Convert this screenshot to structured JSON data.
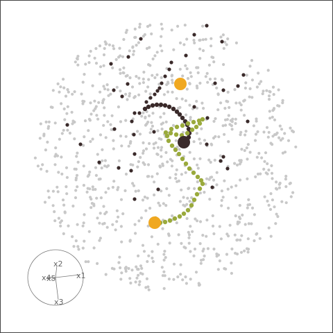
{
  "colors": {
    "background": "#ffffff",
    "border": "#444444",
    "background_points": "#c8c8c8",
    "dark_points": "#3a2a2a",
    "path_olive": "#9aaa3c",
    "highlight_orange": "#f0a820",
    "axis_gray": "#777777"
  },
  "axes_widget": {
    "labels": [
      "x1",
      "x2",
      "x3",
      "x4",
      "x5"
    ]
  },
  "chart_data": {
    "type": "scatter",
    "title": "",
    "xlabel": "",
    "ylabel": "",
    "grid": false,
    "legend": "none",
    "dark_points": [
      [
        298,
        37
      ],
      [
        280,
        50
      ],
      [
        203,
        56
      ],
      [
        320,
        60
      ],
      [
        185,
        82
      ],
      [
        268,
        80
      ],
      [
        160,
        92
      ],
      [
        351,
        108
      ],
      [
        310,
        120
      ],
      [
        184,
        121
      ],
      [
        343,
        124
      ],
      [
        164,
        130
      ],
      [
        322,
        130
      ],
      [
        176,
        139
      ],
      [
        280,
        154
      ],
      [
        194,
        163
      ],
      [
        299,
        170
      ],
      [
        357,
        175
      ],
      [
        190,
        175
      ],
      [
        97,
        180
      ],
      [
        165,
        186
      ],
      [
        222,
        190
      ],
      [
        193,
        194
      ],
      [
        116,
        208
      ],
      [
        298,
        208
      ],
      [
        194,
        222
      ],
      [
        322,
        226
      ],
      [
        318,
        232
      ],
      [
        143,
        234
      ],
      [
        189,
        246
      ],
      [
        171,
        242
      ],
      [
        328,
        243
      ],
      [
        228,
        273
      ],
      [
        194,
        287
      ],
      [
        306,
        270
      ],
      [
        247,
        90
      ],
      [
        244,
        100
      ],
      [
        238,
        110
      ],
      [
        233,
        120
      ],
      [
        230,
        127
      ],
      [
        227,
        131
      ],
      [
        223,
        136
      ],
      [
        217,
        141
      ],
      [
        211,
        147
      ],
      [
        201,
        163
      ]
    ],
    "dark_curve": [
      [
        209,
        157
      ],
      [
        214,
        154
      ],
      [
        220,
        152
      ],
      [
        226,
        151
      ],
      [
        232,
        151
      ],
      [
        238,
        152
      ],
      [
        244,
        154
      ],
      [
        250,
        157
      ],
      [
        255,
        161
      ],
      [
        259,
        165
      ],
      [
        263,
        170
      ],
      [
        267,
        175
      ],
      [
        270,
        180
      ],
      [
        272,
        186
      ],
      [
        273,
        192
      ],
      [
        272,
        198
      ],
      [
        270,
        204
      ],
      [
        267,
        208
      ]
    ],
    "olive_path": [
      [
        239,
        191
      ],
      [
        247,
        186
      ],
      [
        255,
        183
      ],
      [
        263,
        181
      ],
      [
        271,
        178
      ],
      [
        279,
        176
      ],
      [
        287,
        174
      ],
      [
        292,
        172
      ],
      [
        288,
        178
      ],
      [
        283,
        183
      ],
      [
        277,
        187
      ],
      [
        270,
        192
      ],
      [
        262,
        195
      ],
      [
        254,
        194
      ],
      [
        246,
        192
      ],
      [
        241,
        196
      ],
      [
        243,
        203
      ],
      [
        248,
        210
      ],
      [
        253,
        216
      ],
      [
        258,
        222
      ],
      [
        263,
        229
      ],
      [
        268,
        236
      ],
      [
        273,
        243
      ],
      [
        279,
        249
      ],
      [
        285,
        255
      ],
      [
        290,
        260
      ],
      [
        292,
        265
      ],
      [
        288,
        272
      ],
      [
        284,
        280
      ],
      [
        280,
        288
      ],
      [
        276,
        296
      ],
      [
        271,
        303
      ],
      [
        265,
        308
      ],
      [
        259,
        312
      ],
      [
        252,
        315
      ],
      [
        245,
        318
      ],
      [
        238,
        320
      ],
      [
        231,
        321
      ],
      [
        225,
        320
      ],
      [
        221,
        318
      ],
      [
        224,
        315
      ]
    ],
    "highlight_points": [
      [
        260,
        121
      ],
      [
        223,
        321
      ]
    ],
    "large_dark_point": [
      265,
      205
    ],
    "background_point_count": 900
  }
}
